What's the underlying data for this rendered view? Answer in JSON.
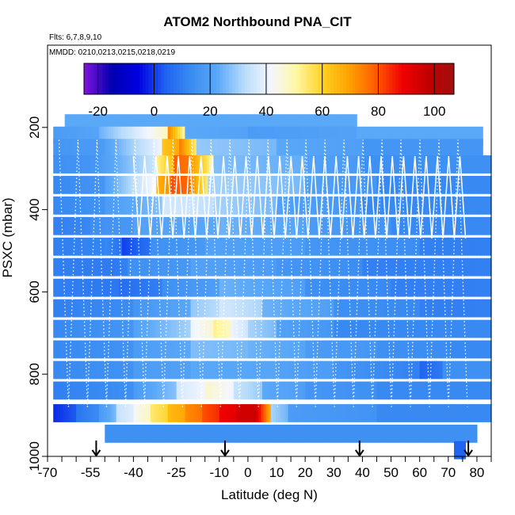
{
  "header": {
    "title": "ATOM2 Northbound PNA_CIT",
    "flights_note": "Flts: 6,7,8,9,10",
    "dates_note": "MMDD: 0210,0213,0215,0218,0219"
  },
  "colors": {
    "background": "#ffffff",
    "axis": "#000000",
    "track": "#ffffff",
    "colormap": [
      "#7b12d9",
      "#0000b0",
      "#0000e0",
      "#1e62f0",
      "#3a8cf2",
      "#5aa8f8",
      "#b8dcfa",
      "#f4f6ff",
      "#fff7a0",
      "#ffd020",
      "#ffa000",
      "#ff5a00",
      "#f00000",
      "#c00000",
      "#a01010"
    ]
  },
  "chart_data": {
    "type": "heatmap",
    "title": "ATOM2 Northbound PNA_CIT",
    "xlabel": "Latitude (deg N)",
    "ylabel": "PSXC (mbar)",
    "xlim": [
      -70,
      85
    ],
    "ylim": [
      1000,
      0
    ],
    "x_ticks": [
      -70,
      -55,
      -40,
      -25,
      -10,
      0,
      10,
      20,
      30,
      40,
      50,
      60,
      70,
      80
    ],
    "x_tick_labels": [
      "-70",
      "-55",
      "-40",
      "-25",
      "-10",
      "0",
      "10",
      "20",
      "30",
      "40",
      "50",
      "60",
      "70",
      "80"
    ],
    "x_minor_ticks": [
      -65,
      -60,
      -50,
      -45,
      -35,
      -30,
      -20,
      -15,
      -5,
      5,
      15,
      25,
      35,
      45,
      55,
      65,
      75,
      85
    ],
    "y_ticks": [
      200,
      400,
      600,
      800,
      1000
    ],
    "y_tick_labels": [
      "200",
      "400",
      "600",
      "800",
      "1000"
    ],
    "colorbar": {
      "range": [
        -25,
        107
      ],
      "tick_values": [
        -20,
        0,
        20,
        40,
        60,
        80,
        100
      ],
      "tick_labels": [
        "-20",
        "0",
        "20",
        "40",
        "60",
        "80",
        "100"
      ],
      "divider_values": [
        -20,
        0,
        20,
        40,
        60,
        80,
        100
      ]
    },
    "descent_arrow_latitudes": [
      -53,
      -8,
      39,
      77
    ],
    "pressure_rows": [
      {
        "pressure": 190,
        "x_start": -64,
        "x_end": 38,
        "breakpoints": [
          -64,
          38
        ],
        "values": [
          22
        ]
      },
      {
        "pressure": 220,
        "x_start": -68,
        "x_end": 82,
        "breakpoints": [
          -68,
          -52,
          -28,
          -22,
          0,
          38,
          82
        ],
        "values": [
          18,
          24,
          72,
          22,
          18,
          22
        ]
      },
      {
        "pressure": 250,
        "x_start": -68,
        "x_end": 82,
        "breakpoints": [
          -68,
          -50,
          -30,
          -24,
          -18,
          10,
          40,
          82
        ],
        "values": [
          16,
          20,
          62,
          74,
          28,
          22,
          16
        ]
      },
      {
        "pressure": 290,
        "x_start": -68,
        "x_end": 85,
        "breakpoints": [
          -68,
          -52,
          -32,
          -26,
          -20,
          -12,
          20,
          40,
          85
        ],
        "values": [
          14,
          18,
          52,
          78,
          70,
          26,
          20,
          14
        ]
      },
      {
        "pressure": 340,
        "x_start": -68,
        "x_end": 85,
        "breakpoints": [
          -68,
          -50,
          -32,
          -27,
          -20,
          -14,
          20,
          45,
          85
        ],
        "values": [
          12,
          20,
          66,
          80,
          72,
          30,
          20,
          12
        ]
      },
      {
        "pressure": 390,
        "x_start": -68,
        "x_end": 85,
        "breakpoints": [
          -68,
          -50,
          -30,
          -12,
          10,
          40,
          85
        ],
        "values": [
          12,
          18,
          36,
          30,
          20,
          12
        ]
      },
      {
        "pressure": 440,
        "x_start": -68,
        "x_end": 85,
        "breakpoints": [
          -68,
          -55,
          -40,
          -10,
          20,
          50,
          85
        ],
        "values": [
          10,
          14,
          20,
          24,
          18,
          12
        ]
      },
      {
        "pressure": 490,
        "x_start": -68,
        "x_end": 85,
        "breakpoints": [
          -68,
          -50,
          -44,
          -34,
          -15,
          20,
          60,
          85
        ],
        "values": [
          10,
          12,
          0,
          14,
          20,
          16,
          10
        ]
      },
      {
        "pressure": 540,
        "x_start": -68,
        "x_end": 85,
        "breakpoints": [
          -68,
          -48,
          -42,
          -20,
          10,
          40,
          85
        ],
        "values": [
          10,
          8,
          14,
          20,
          16,
          10
        ]
      },
      {
        "pressure": 590,
        "x_start": -68,
        "x_end": 85,
        "breakpoints": [
          -68,
          -45,
          -30,
          -10,
          20,
          50,
          85
        ],
        "values": [
          10,
          6,
          14,
          24,
          14,
          10
        ]
      },
      {
        "pressure": 640,
        "x_start": -68,
        "x_end": 85,
        "breakpoints": [
          -68,
          -40,
          -20,
          -10,
          5,
          30,
          60,
          85
        ],
        "values": [
          10,
          16,
          28,
          36,
          24,
          14,
          10
        ]
      },
      {
        "pressure": 690,
        "x_start": -68,
        "x_end": 85,
        "breakpoints": [
          -68,
          -40,
          -20,
          -12,
          -6,
          0,
          10,
          30,
          85
        ],
        "values": [
          12,
          20,
          40,
          52,
          40,
          30,
          20,
          12
        ]
      },
      {
        "pressure": 740,
        "x_start": -68,
        "x_end": 85,
        "breakpoints": [
          -68,
          -40,
          -20,
          0,
          20,
          45,
          70,
          85
        ],
        "values": [
          12,
          18,
          26,
          24,
          18,
          14,
          12
        ]
      },
      {
        "pressure": 790,
        "x_start": -68,
        "x_end": 85,
        "breakpoints": [
          -68,
          -40,
          -20,
          10,
          30,
          60,
          68,
          85
        ],
        "values": [
          12,
          18,
          22,
          20,
          16,
          4,
          14
        ]
      },
      {
        "pressure": 840,
        "x_start": -68,
        "x_end": 85,
        "breakpoints": [
          -68,
          -40,
          -25,
          -15,
          -5,
          5,
          20,
          45,
          85
        ],
        "values": [
          10,
          18,
          36,
          46,
          34,
          22,
          16,
          12
        ]
      },
      {
        "pressure": 895,
        "x_start": -68,
        "x_end": 85,
        "breakpoints": [
          -68,
          -60,
          -52,
          -46,
          -40,
          -34,
          -28,
          -22,
          -16,
          -10,
          -4,
          2,
          8,
          14,
          45,
          85
        ],
        "values": [
          -2,
          8,
          18,
          34,
          42,
          54,
          64,
          72,
          80,
          88,
          94,
          96,
          30,
          18,
          12
        ]
      },
      {
        "pressure": 945,
        "x_start": -50,
        "x_end": 80,
        "breakpoints": [
          -50,
          80
        ],
        "values": [
          14
        ]
      },
      {
        "pressure": 985,
        "x_start": 72,
        "x_end": 76,
        "breakpoints": [
          72,
          76
        ],
        "values": [
          4
        ]
      }
    ]
  }
}
